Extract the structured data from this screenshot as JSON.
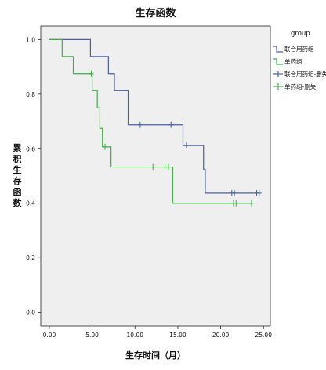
{
  "chart_data": {
    "type": "line",
    "title": "生存函数",
    "xlabel": "生存时间（月）",
    "ylabel": "累积生存函数",
    "xlim": [
      -1,
      25.8
    ],
    "ylim": [
      -0.05,
      1.05
    ],
    "xticks": [
      "0.00",
      "5.00",
      "10.00",
      "15.00",
      "20.00",
      "25.00"
    ],
    "yticks": [
      "0.0",
      "0.2",
      "0.4",
      "0.6",
      "0.8",
      "1.0"
    ],
    "grid": false,
    "plot_background": "#efefef",
    "legend": {
      "title": "group",
      "position": "right",
      "entries": [
        {
          "label": "联合用药组",
          "color": "#4a5ea8",
          "kind": "line"
        },
        {
          "label": "单药组",
          "color": "#3cb043",
          "kind": "line"
        },
        {
          "label": "联合用药组-删失",
          "color": "#4a5ea8",
          "kind": "censor"
        },
        {
          "label": "单药组-删失",
          "color": "#3cb043",
          "kind": "censor"
        }
      ]
    },
    "series": [
      {
        "name": "联合用药组",
        "color": "#4a5ea8",
        "steps": [
          {
            "x": 0,
            "y": 1.0
          },
          {
            "x": 4.8,
            "y": 0.938
          },
          {
            "x": 6.9,
            "y": 0.875
          },
          {
            "x": 7.6,
            "y": 0.813
          },
          {
            "x": 9.2,
            "y": 0.688
          },
          {
            "x": 15.6,
            "y": 0.612
          },
          {
            "x": 18.0,
            "y": 0.525
          },
          {
            "x": 18.2,
            "y": 0.437
          }
        ],
        "end_x": 24.5,
        "censored": [
          {
            "x": 10.6,
            "y": 0.688
          },
          {
            "x": 14.2,
            "y": 0.688
          },
          {
            "x": 16.0,
            "y": 0.612
          },
          {
            "x": 21.3,
            "y": 0.437
          },
          {
            "x": 21.6,
            "y": 0.437
          },
          {
            "x": 24.2,
            "y": 0.437
          },
          {
            "x": 24.5,
            "y": 0.437
          }
        ]
      },
      {
        "name": "单药组",
        "color": "#3cb043",
        "steps": [
          {
            "x": 0,
            "y": 1.0
          },
          {
            "x": 1.5,
            "y": 0.938
          },
          {
            "x": 2.8,
            "y": 0.875
          },
          {
            "x": 5.0,
            "y": 0.813
          },
          {
            "x": 5.6,
            "y": 0.75
          },
          {
            "x": 5.9,
            "y": 0.675
          },
          {
            "x": 6.2,
            "y": 0.607
          },
          {
            "x": 7.2,
            "y": 0.533
          },
          {
            "x": 14.4,
            "y": 0.4
          }
        ],
        "end_x": 23.6,
        "censored": [
          {
            "x": 4.9,
            "y": 0.875
          },
          {
            "x": 6.5,
            "y": 0.607
          },
          {
            "x": 12.1,
            "y": 0.533
          },
          {
            "x": 13.5,
            "y": 0.533
          },
          {
            "x": 13.9,
            "y": 0.533
          },
          {
            "x": 21.5,
            "y": 0.4
          },
          {
            "x": 21.8,
            "y": 0.4
          },
          {
            "x": 23.6,
            "y": 0.4
          }
        ]
      }
    ]
  }
}
